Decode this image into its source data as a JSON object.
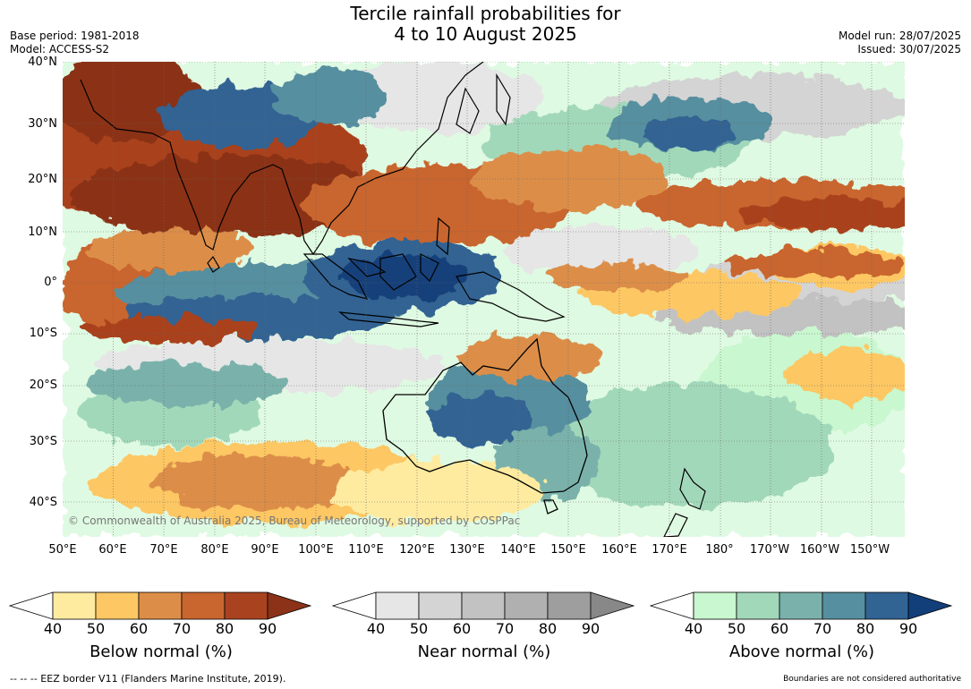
{
  "header": {
    "title_line1": "Tercile rainfall probabilities for",
    "title_line2": "4 to 10 August 2025",
    "base_period": "Base period: 1981-2018",
    "model": "Model: ACCESS-S2",
    "model_run": "Model run: 28/07/2025",
    "issued": "Issued: 30/07/2025"
  },
  "map": {
    "copyright": "© Commonwealth of Australia 2025, Bureau of Meteorology, supported by COSPPac",
    "lat_labels": [
      "40°N",
      "30°N",
      "20°N",
      "10°N",
      "0°",
      "10°S",
      "20°S",
      "30°S",
      "40°S"
    ],
    "lon_labels": [
      "50°E",
      "60°E",
      "70°E",
      "80°E",
      "90°E",
      "100°E",
      "110°E",
      "120°E",
      "130°E",
      "140°E",
      "150°E",
      "160°E",
      "170°E",
      "180°",
      "170°W",
      "160°W",
      "150°W"
    ]
  },
  "legends": [
    {
      "name": "below-normal",
      "label": "Below normal (%)",
      "ticks": [
        "40",
        "50",
        "60",
        "70",
        "80",
        "90"
      ],
      "colors": [
        "#ffffff",
        "#feeba0",
        "#fdc764",
        "#dc8e48",
        "#c9652f",
        "#a9431f",
        "#8b3218"
      ]
    },
    {
      "name": "near-normal",
      "label": "Near normal (%)",
      "ticks": [
        "40",
        "50",
        "60",
        "70",
        "80",
        "90"
      ],
      "colors": [
        "#ffffff",
        "#e6e6e6",
        "#d4d4d4",
        "#c2c2c2",
        "#b0b0b0",
        "#9e9e9e",
        "#888888"
      ]
    },
    {
      "name": "above-normal",
      "label": "Above normal (%)",
      "ticks": [
        "40",
        "50",
        "60",
        "70",
        "80",
        "90"
      ],
      "colors": [
        "#ffffff",
        "#c9f7cf",
        "#a2d8ba",
        "#7ab2ab",
        "#568f9f",
        "#316393",
        "#123f7a"
      ]
    }
  ],
  "footer": {
    "eez": "-- -- -- EEZ border V11 (Flanders Marine Institute, 2019).",
    "disclaimer": "Boundaries are not considered authoritative"
  }
}
